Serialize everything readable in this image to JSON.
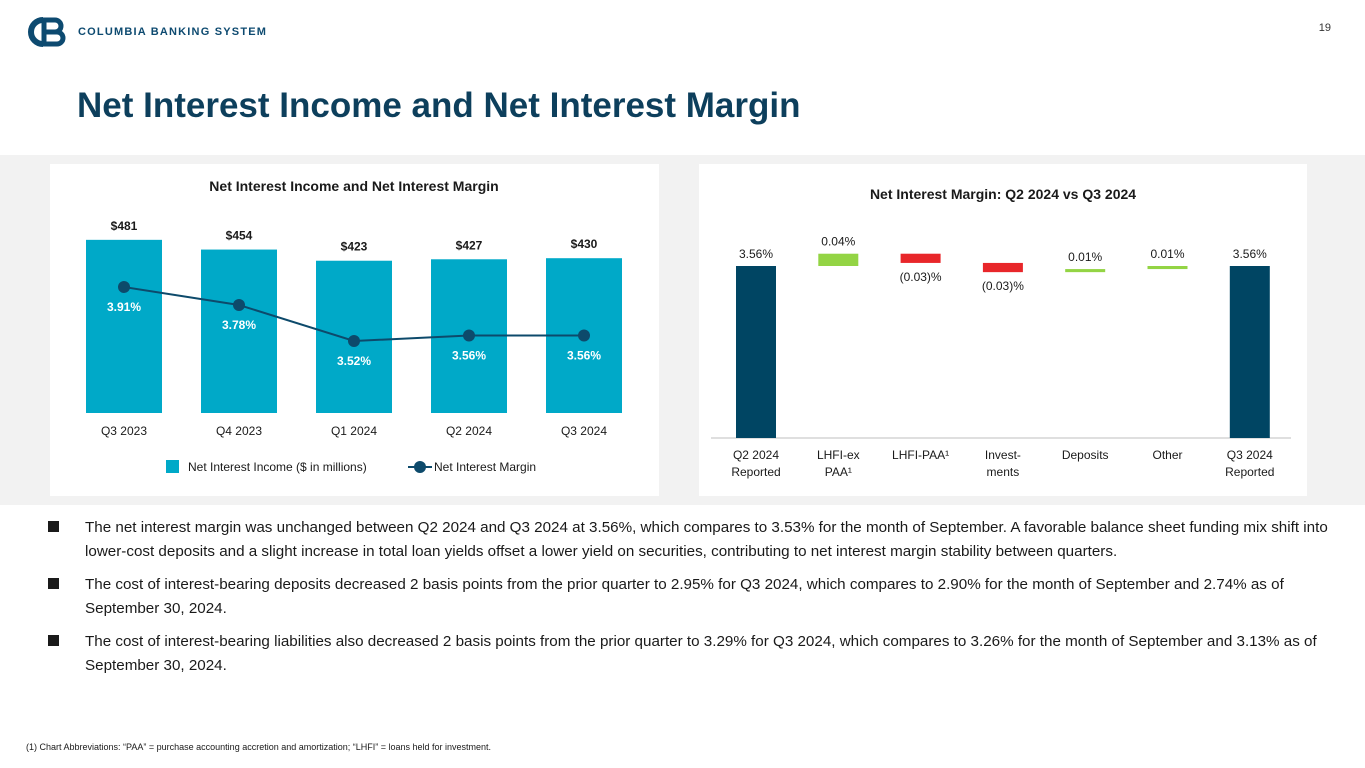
{
  "header": {
    "logo_text": "COLUMBIA BANKING SYSTEM",
    "page_number": "19",
    "title": "Net Interest Income and Net Interest Margin",
    "brand_color": "#0d4a70",
    "title_color": "#0d3f5c"
  },
  "chart_data": [
    {
      "type": "bar",
      "title": "Net Interest Income and Net Interest Margin",
      "categories": [
        "Q3 2023",
        "Q4 2023",
        "Q1 2024",
        "Q2 2024",
        "Q3 2024"
      ],
      "series": [
        {
          "name": "Net Interest Income ($ in millions)",
          "type": "bar",
          "values": [
            481,
            454,
            423,
            427,
            430
          ],
          "labels": [
            "$481",
            "$454",
            "$423",
            "$427",
            "$430"
          ],
          "color": "#00a9c8"
        },
        {
          "name": "Net Interest Margin",
          "type": "line",
          "values": [
            3.91,
            3.78,
            3.52,
            3.56,
            3.56
          ],
          "labels": [
            "3.91%",
            "3.78%",
            "3.52%",
            "3.56%",
            "3.56%"
          ],
          "color": "#0d4a6b",
          "ylim": [
            3.0,
            4.3
          ]
        }
      ],
      "ylim": [
        0,
        500
      ],
      "legend": "bottom"
    },
    {
      "type": "waterfall",
      "title": "Net Interest Margin: Q2 2024 vs Q3 2024",
      "categories": [
        [
          "Q2 2024",
          "Reported"
        ],
        [
          "LHFI-ex",
          "PAA¹"
        ],
        [
          "LHFI-PAA¹"
        ],
        [
          "Invest-",
          "ments"
        ],
        [
          "Deposits"
        ],
        [
          "Other"
        ],
        [
          "Q3 2024",
          "Reported"
        ]
      ],
      "values": [
        3.56,
        0.04,
        -0.03,
        -0.03,
        0.01,
        0.01,
        3.56
      ],
      "kinds": [
        "total",
        "change",
        "change",
        "change",
        "change",
        "change",
        "total"
      ],
      "labels": [
        "3.56%",
        "0.04%",
        "(0.03)%",
        "(0.03)%",
        "0.01%",
        "0.01%",
        "3.56%"
      ],
      "colors": {
        "total": "#004563",
        "increase": "#93d444",
        "decrease": "#e8262a"
      },
      "ylim": [
        3.0,
        3.66
      ]
    }
  ],
  "bullets": [
    "The net interest margin was unchanged between Q2 2024 and Q3 2024 at 3.56%, which compares to 3.53% for the month of September. A favorable balance sheet funding mix shift into lower-cost deposits and a slight increase in total loan yields offset a lower yield on securities, contributing to net interest margin stability between quarters.",
    "The cost of interest-bearing deposits decreased 2 basis points from the prior quarter to 2.95% for Q3 2024, which compares to 2.90% for the month of September and 2.74% as of September 30, 2024.",
    "The cost of interest-bearing liabilities also decreased 2 basis points from the prior quarter to 3.29% for Q3 2024, which compares to 3.26% for the month of September and 3.13% as of September 30, 2024."
  ],
  "footnote": "(1)  Chart Abbreviations: “PAA” = purchase accounting accretion and amortization; “LHFI” = loans held for investment."
}
